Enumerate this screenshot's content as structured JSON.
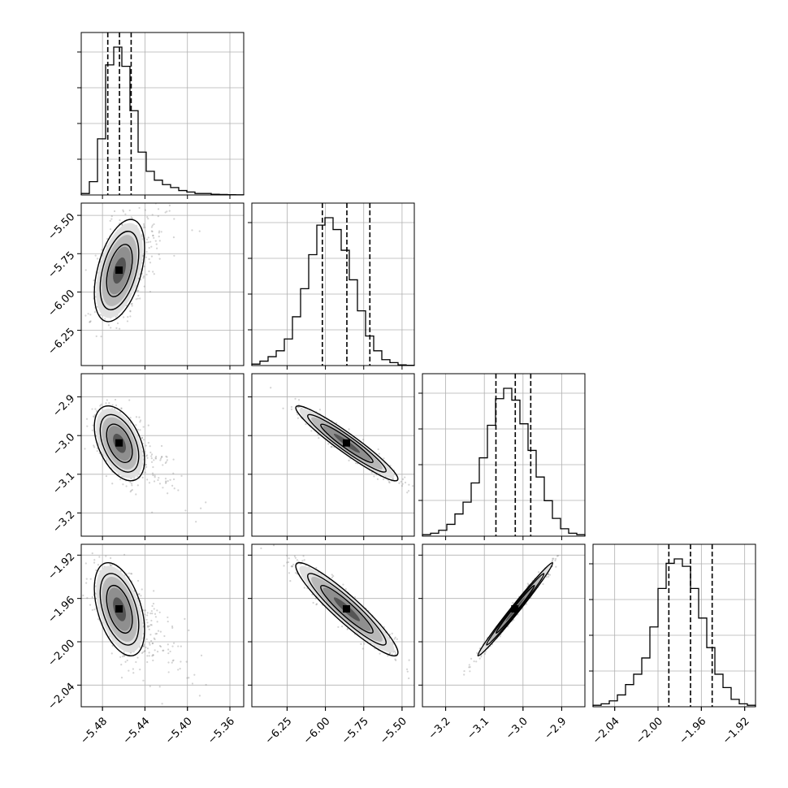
{
  "chart_data": {
    "type": "corner",
    "title": "",
    "grid": true,
    "colors": {
      "line": "#000000",
      "grid": "#b0b0b0",
      "scatter": "#808080",
      "background": "#ffffff"
    },
    "parameters": [
      {
        "median": -5.464,
        "q16": -5.475,
        "q84": -5.453,
        "range": [
          -5.5,
          -5.347
        ],
        "ticks": [
          -5.48,
          -5.44,
          -5.4,
          -5.36
        ],
        "tick_labels": [
          "−5.48",
          "−5.44",
          "−5.40",
          "−5.36"
        ],
        "hist": [
          0.01,
          0.09,
          0.38,
          0.88,
          1.0,
          0.87,
          0.57,
          0.29,
          0.16,
          0.1,
          0.07,
          0.05,
          0.03,
          0.02,
          0.01,
          0.01,
          0.005,
          0.003,
          0.002,
          0.001
        ]
      },
      {
        "median": -5.86,
        "q16": -6.02,
        "q84": -5.71,
        "range": [
          -6.48,
          -5.42
        ],
        "ticks": [
          -6.25,
          -6.0,
          -5.75,
          -5.5
        ],
        "tick_labels": [
          "−6.25",
          "−6.00",
          "−5.75",
          "−5.50"
        ],
        "hist": [
          0.01,
          0.03,
          0.06,
          0.1,
          0.18,
          0.33,
          0.52,
          0.75,
          0.95,
          1.0,
          0.92,
          0.78,
          0.58,
          0.37,
          0.2,
          0.1,
          0.04,
          0.02,
          0.005,
          0.002
        ]
      },
      {
        "median": -3.02,
        "q16": -3.07,
        "q84": -2.98,
        "range": [
          -3.26,
          -2.84
        ],
        "ticks": [
          -3.2,
          -3.1,
          -3.0,
          -2.9
        ],
        "tick_labels": [
          "−3.2",
          "−3.1",
          "−3.0",
          "−2.9"
        ],
        "hist": [
          0.01,
          0.02,
          0.04,
          0.08,
          0.15,
          0.23,
          0.36,
          0.53,
          0.75,
          0.93,
          1.0,
          0.92,
          0.76,
          0.58,
          0.4,
          0.24,
          0.12,
          0.05,
          0.02,
          0.01
        ]
      },
      {
        "median": -1.97,
        "q16": -1.99,
        "q84": -1.95,
        "range": [
          -2.06,
          -1.91
        ],
        "ticks": [
          -2.04,
          -2.0,
          -1.96,
          -1.92
        ],
        "tick_labels": [
          "−2.04",
          "−2.00",
          "−1.96",
          "−1.92"
        ],
        "hist": [
          0.01,
          0.02,
          0.04,
          0.08,
          0.15,
          0.22,
          0.33,
          0.54,
          0.8,
          0.97,
          1.0,
          0.95,
          0.8,
          0.6,
          0.4,
          0.22,
          0.13,
          0.05,
          0.02,
          0.01
        ]
      }
    ],
    "y_ticks": [
      null,
      {
        "ticks": [
          -6.25,
          -6.0,
          -5.75,
          -5.5
        ],
        "tick_labels": [
          "−6.25",
          "−6.00",
          "−5.75",
          "−5.50"
        ]
      },
      {
        "ticks": [
          -3.2,
          -3.1,
          -3.0,
          -2.9
        ],
        "tick_labels": [
          "−3.2",
          "−3.1",
          "−3.0",
          "−2.9"
        ]
      },
      {
        "ticks": [
          -2.04,
          -2.0,
          -1.96,
          -1.92
        ],
        "tick_labels": [
          "−2.04",
          "−2.00",
          "−1.96",
          "−1.92"
        ]
      }
    ],
    "correlations": [
      [
        1.0,
        0.45,
        -0.45,
        -0.45
      ],
      [
        0.45,
        1.0,
        -0.95,
        -0.93
      ],
      [
        -0.45,
        -0.95,
        1.0,
        0.99
      ],
      [
        -0.45,
        -0.93,
        0.99,
        1.0
      ]
    ]
  }
}
